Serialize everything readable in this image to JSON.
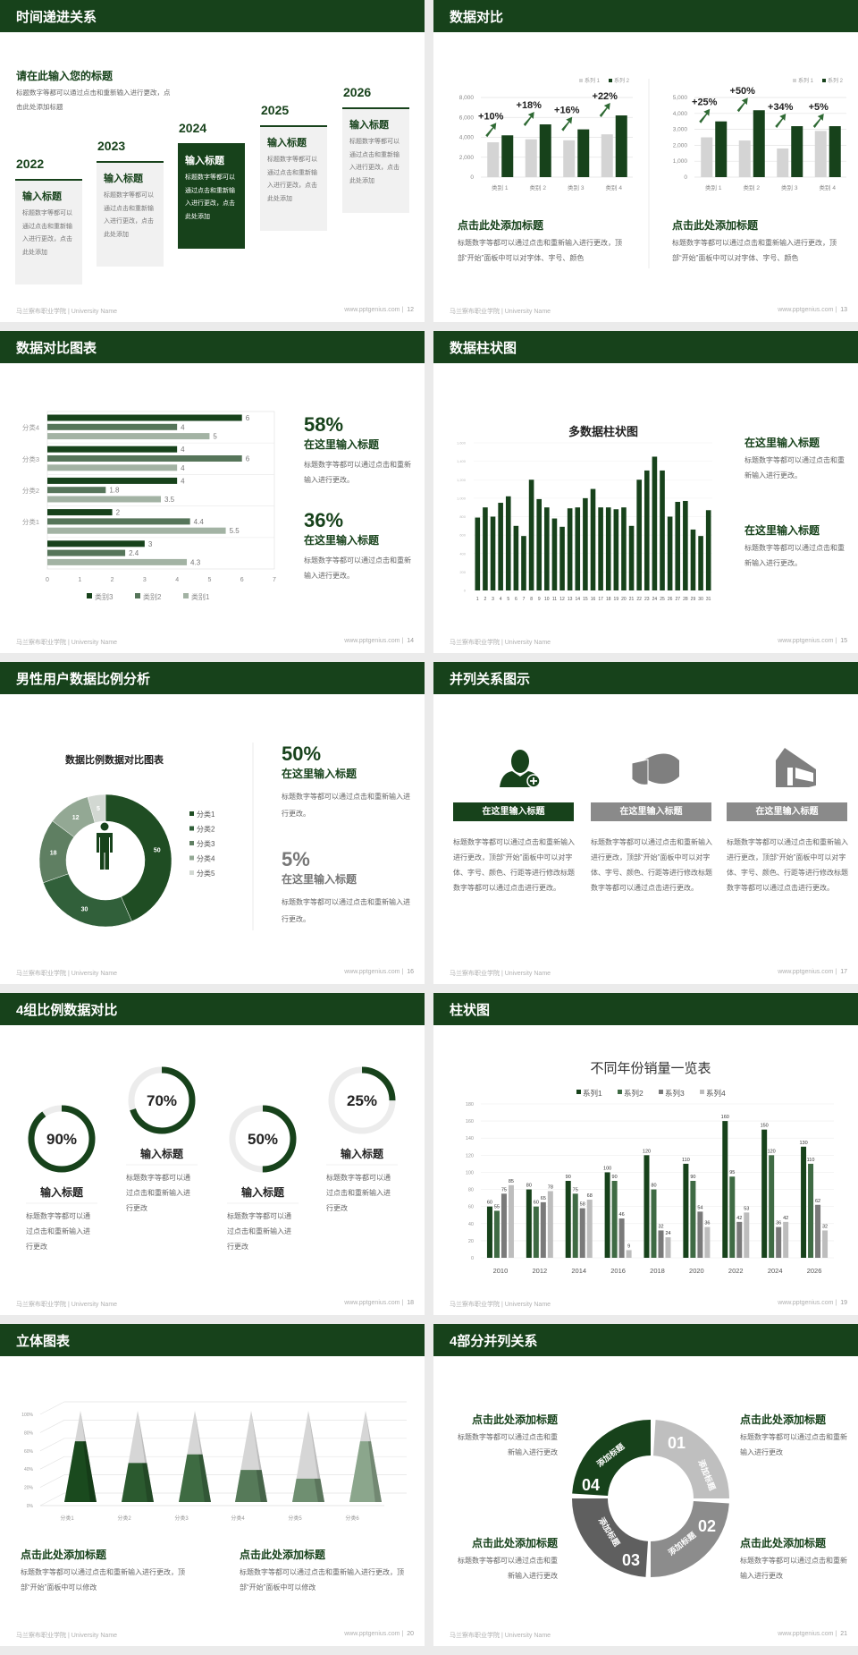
{
  "page": {
    "accent": "#17421b",
    "footer_left": "马兰察布职业学院 | University Name",
    "footer_site": "www.pptgenius.com |"
  },
  "slides": [
    {
      "title": "时间递进关系",
      "num": "12",
      "heading": "请在此输入您的标题",
      "desc": "标题数字等都可以通过点击和重新输入进行更改，点击此处添加标题",
      "cards": [
        {
          "year": "2022",
          "title": "输入标题",
          "text": "标题数字等都可以通过点击和重新输入进行更改，点击此处添加"
        },
        {
          "year": "2023",
          "title": "输入标题",
          "text": "标题数字等都可以通过点击和重新输入进行更改，点击此处添加"
        },
        {
          "year": "2024",
          "title": "输入标题",
          "text": "标题数字等都可以通过点击和重新输入进行更改，点击此处添加"
        },
        {
          "year": "2025",
          "title": "输入标题",
          "text": "标题数字等都可以通过点击和重新输入进行更改，点击此处添加"
        },
        {
          "year": "2026",
          "title": "输入标题",
          "text": "标题数字等都可以通过点击和重新输入进行更改，点击此处添加"
        }
      ]
    },
    {
      "title": "数据对比",
      "num": "13",
      "blocks": [
        {
          "heading": "点击此处添加标题",
          "text": "标题数字等都可以通过点击和重新输入进行更改，顶部“开始”面板中可以对字体、字号、颜色"
        },
        {
          "heading": "点击此处添加标题",
          "text": "标题数字等都可以通过点击和重新输入进行更改，顶部“开始”面板中可以对字体、字号、颜色"
        }
      ]
    },
    {
      "title": "数据对比图表",
      "num": "14",
      "stats": [
        {
          "value": "58%",
          "heading": "在这里输入标题",
          "text": "标题数字等都可以通过点击和重新输入进行更改。"
        },
        {
          "value": "36%",
          "heading": "在这里输入标题",
          "text": "标题数字等都可以通过点击和重新输入进行更改。"
        }
      ]
    },
    {
      "title": "数据柱状图",
      "num": "15",
      "blocks": [
        {
          "heading": "在这里输入标题",
          "text": "标题数字等都可以通过点击和重新输入进行更改。"
        },
        {
          "heading": "在这里输入标题",
          "text": "标题数字等都可以通过点击和重新输入进行更改。"
        }
      ]
    },
    {
      "title": "男性用户数据比例分析",
      "num": "16",
      "stats": [
        {
          "value": "50%",
          "heading": "在这里输入标题",
          "text": "标题数字等都可以通过点击和重新输入进行更改。"
        },
        {
          "value": "5%",
          "heading": "在这里输入标题",
          "text": "标题数字等都可以通过点击和重新输入进行更改。"
        }
      ]
    },
    {
      "title": "并列关系图示",
      "num": "17",
      "columns": [
        {
          "icon": "woman-add-user-icon",
          "button": "在这里输入标题",
          "text": "标题数字等都可以通过点击和重新输入进行更改，顶部“开始”面板中可以对字体、字号、颜色、行距等进行修改标题数字等都可以通过点击进行更改。",
          "color": "#17421b"
        },
        {
          "icon": "pie-chart-3d-icon",
          "button": "在这里输入标题",
          "text": "标题数字等都可以通过点击和重新输入进行更改，顶部“开始”面板中可以对字体、字号、颜色、行距等进行修改标题数字等都可以通过点击进行更改。",
          "color": "#8a8a8a"
        },
        {
          "icon": "building-icon",
          "button": "在这里输入标题",
          "text": "标题数字等都可以通过点击和重新输入进行更改，顶部“开始”面板中可以对字体、字号、颜色、行距等进行修改标题数字等都可以通过点击进行更改。",
          "color": "#8a8a8a"
        }
      ]
    },
    {
      "title": "4组比例数据对比",
      "num": "18",
      "rings": [
        {
          "percent": 90,
          "label": "90%",
          "heading": "输入标题",
          "text": "标题数字等都可以通过点击和重新输入进行更改"
        },
        {
          "percent": 70,
          "label": "70%",
          "heading": "输入标题",
          "text": "标题数字等都可以通过点击和重新输入进行更改"
        },
        {
          "percent": 50,
          "label": "50%",
          "heading": "输入标题",
          "text": "标题数字等都可以通过点击和重新输入进行更改"
        },
        {
          "percent": 25,
          "label": "25%",
          "heading": "输入标题",
          "text": "标题数字等都可以通过点击和重新输入进行更改"
        }
      ]
    },
    {
      "title": "柱状图",
      "num": "19"
    },
    {
      "title": "立体图表",
      "num": "20",
      "blocks": [
        {
          "heading": "点击此处添加标题",
          "text": "标题数字等都可以通过点击和重新输入进行更改，顶部“开始”面板中可以修改"
        },
        {
          "heading": "点击此处添加标题",
          "text": "标题数字等都可以通过点击和重新输入进行更改，顶部“开始”面板中可以修改"
        }
      ]
    },
    {
      "title": "4部分并列关系",
      "num": "21",
      "segments": [
        {
          "number": "01",
          "label": "添加标题",
          "color": "#bfbfbf"
        },
        {
          "number": "02",
          "label": "添加标题",
          "color": "#8c8c8c"
        },
        {
          "number": "03",
          "label": "添加标题",
          "color": "#5f5f5f"
        },
        {
          "number": "04",
          "label": "添加标题",
          "color": "#17421b"
        }
      ],
      "blocks": [
        {
          "heading": "点击此处添加标题",
          "text": "标题数字等都可以通过点击和重新输入进行更改"
        },
        {
          "heading": "点击此处添加标题",
          "text": "标题数字等都可以通过点击和重新输入进行更改"
        },
        {
          "heading": "点击此处添加标题",
          "text": "标题数字等都可以通过点击和重新输入进行更改"
        },
        {
          "heading": "点击此处添加标题",
          "text": "标题数字等都可以通过点击和重新输入进行更改"
        }
      ]
    }
  ],
  "chart_data": [
    {
      "type": "bar",
      "categories": [
        "类别 1",
        "类别 2",
        "类别 3",
        "类别 4"
      ],
      "series": [
        {
          "name": "系列 1",
          "values": [
            3500,
            3800,
            3700,
            4300
          ]
        },
        {
          "name": "系列 2",
          "values": [
            4200,
            5300,
            4800,
            6200
          ]
        }
      ],
      "annotations": [
        "+10%",
        "+18%",
        "+16%",
        "+22%"
      ],
      "yticks": [
        "0",
        "2,000",
        "4,000",
        "6,000",
        "8,000"
      ],
      "ylim": [
        0,
        8000
      ],
      "legend": "top-right",
      "grid": true,
      "colors": [
        "#d4d4d4",
        "#17421b"
      ]
    },
    {
      "type": "bar",
      "categories": [
        "类别 1",
        "类别 2",
        "类别 3",
        "类别 4"
      ],
      "series": [
        {
          "name": "系列 1",
          "values": [
            2500,
            2300,
            1800,
            2900
          ]
        },
        {
          "name": "系列 2",
          "values": [
            3500,
            4200,
            3200,
            3200
          ]
        }
      ],
      "annotations": [
        "+25%",
        "+50%",
        "+34%",
        "+5%"
      ],
      "yticks": [
        "0",
        "1,000",
        "2,000",
        "3,000",
        "4,000",
        "5,000"
      ],
      "ylim": [
        0,
        5000
      ],
      "legend": "top-right",
      "grid": true,
      "colors": [
        "#d4d4d4",
        "#17421b"
      ]
    },
    {
      "type": "bar",
      "orientation": "horizontal",
      "categories": [
        "分类4",
        "分类3",
        "分类2",
        "分类1",
        ""
      ],
      "series": [
        {
          "name": "类别3",
          "values": [
            6,
            4,
            4,
            2,
            3
          ]
        },
        {
          "name": "类别2",
          "values": [
            4,
            6,
            1.8,
            4.4,
            2.4
          ]
        },
        {
          "name": "类别1",
          "values": [
            5,
            4,
            3.5,
            5.5,
            4.3
          ]
        }
      ],
      "xticks": [
        "0",
        "1",
        "2",
        "3",
        "4",
        "5",
        "6",
        "7"
      ],
      "xlim": [
        0,
        7
      ],
      "legend": "bottom",
      "colors": [
        "#17421b",
        "#56755a",
        "#a3b3a4"
      ]
    },
    {
      "type": "bar",
      "title": "多数据柱状图",
      "categories": [
        "1",
        "2",
        "3",
        "4",
        "5",
        "6",
        "7",
        "8",
        "9",
        "10",
        "11",
        "12",
        "13",
        "14",
        "15",
        "16",
        "17",
        "18",
        "19",
        "20",
        "21",
        "22",
        "23",
        "24",
        "25",
        "26",
        "27",
        "28",
        "29",
        "30",
        "31"
      ],
      "values": [
        790,
        900,
        800,
        950,
        1020,
        700,
        590,
        1200,
        990,
        900,
        780,
        690,
        890,
        900,
        1000,
        1100,
        900,
        900,
        880,
        900,
        700,
        1200,
        1300,
        1450,
        1300,
        800,
        960,
        970,
        660,
        590,
        870
      ],
      "yticks": [
        "0",
        "200",
        "400",
        "600",
        "800",
        "1,000",
        "1,200",
        "1,400",
        "1,600"
      ],
      "ylim": [
        0,
        1600
      ],
      "grid": true,
      "colors": [
        "#17421b"
      ]
    },
    {
      "type": "pie",
      "donut": true,
      "title": "数据比例数据对比图表",
      "categories": [
        "分类1",
        "分类2",
        "分类3",
        "分类4",
        "分类5"
      ],
      "values": [
        50,
        30,
        18,
        12,
        5
      ],
      "legend": "right",
      "colors": [
        "#1f4d23",
        "#31603a",
        "#5f7f62",
        "#93a894",
        "#d2d8d2"
      ]
    },
    {
      "type": "bar",
      "title": "不同年份销量一览表",
      "categories": [
        "2010",
        "2012",
        "2014",
        "2016",
        "2018",
        "2020",
        "2022",
        "2024",
        "2026"
      ],
      "series": [
        {
          "name": "系列1",
          "values": [
            60,
            80,
            90,
            100,
            120,
            110,
            160,
            150,
            130
          ]
        },
        {
          "name": "系列2",
          "values": [
            55,
            60,
            75,
            90,
            80,
            90,
            95,
            120,
            110
          ]
        },
        {
          "name": "系列3",
          "values": [
            75,
            65,
            58,
            46,
            32,
            54,
            42,
            36,
            62
          ]
        },
        {
          "name": "系列4",
          "values": [
            85,
            78,
            68,
            9,
            24,
            36,
            53,
            42,
            32
          ]
        }
      ],
      "yticks": [
        "0",
        "20",
        "40",
        "60",
        "80",
        "100",
        "120",
        "140",
        "160",
        "180"
      ],
      "ylim": [
        0,
        180
      ],
      "legend": "top",
      "grid": true,
      "colors": [
        "#17421b",
        "#3f6b44",
        "#7a7a7a",
        "#bdbdbd"
      ]
    },
    {
      "type": "bar",
      "style": "3d-pyramid",
      "categories": [
        "分类1",
        "分类2",
        "分类3",
        "分类4",
        "分类5",
        "分类6"
      ],
      "values": [
        70,
        45,
        55,
        37,
        27,
        70
      ],
      "yticks": [
        "0%",
        "20%",
        "40%",
        "60%",
        "80%",
        "100%"
      ],
      "ylim": [
        0,
        100
      ],
      "grid": true,
      "colors": [
        "#1a4a1e",
        "#2b5a2f",
        "#3e6b42",
        "#567a59",
        "#6f8f71",
        "#8ba68c"
      ]
    }
  ]
}
